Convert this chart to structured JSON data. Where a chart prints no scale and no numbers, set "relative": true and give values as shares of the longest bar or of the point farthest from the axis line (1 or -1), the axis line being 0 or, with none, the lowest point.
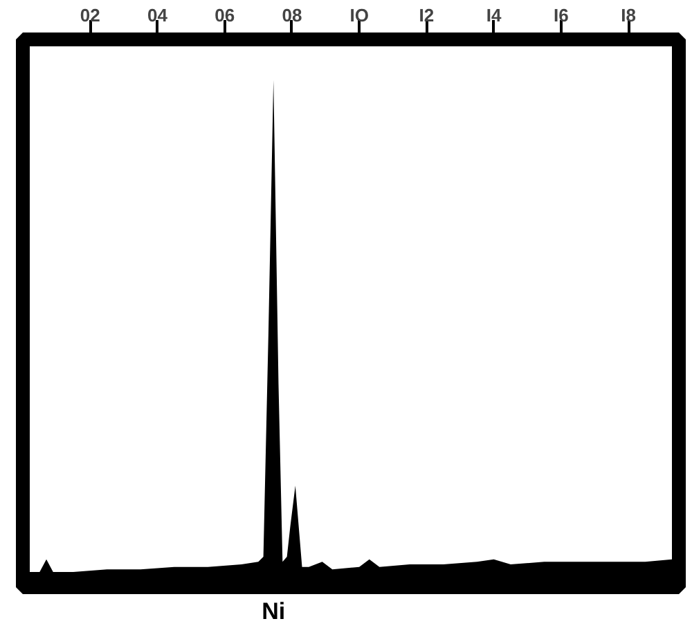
{
  "chart_data": {
    "type": "area",
    "relative": true,
    "x": [
      0.2,
      0.5,
      0.7,
      0.9,
      1.5,
      2.5,
      3.5,
      4.5,
      5.5,
      6.5,
      7.0,
      7.15,
      7.3,
      7.45,
      7.6,
      7.72,
      7.85,
      7.95,
      8.1,
      8.2,
      8.3,
      8.5,
      8.9,
      9.2,
      10.0,
      10.3,
      10.6,
      11.5,
      12.5,
      13.5,
      14.0,
      14.5,
      15.5,
      16.5,
      17.5,
      18.5,
      19.3
    ],
    "series": [
      {
        "color": "#000000",
        "values": [
          0.03,
          0.03,
          0.055,
          0.03,
          0.03,
          0.035,
          0.035,
          0.04,
          0.04,
          0.045,
          0.05,
          0.06,
          0.5,
          1.0,
          0.4,
          0.05,
          0.06,
          0.12,
          0.2,
          0.12,
          0.04,
          0.04,
          0.05,
          0.035,
          0.04,
          0.055,
          0.04,
          0.045,
          0.045,
          0.05,
          0.055,
          0.045,
          0.05,
          0.05,
          0.05,
          0.05,
          0.055
        ]
      }
    ],
    "xlim": [
      0,
      19.5
    ],
    "xticks": [
      {
        "value": 2,
        "label": "02"
      },
      {
        "value": 4,
        "label": "04"
      },
      {
        "value": 6,
        "label": "06"
      },
      {
        "value": 8,
        "label": "08"
      },
      {
        "value": 10,
        "label": "IO"
      },
      {
        "value": 12,
        "label": "I2"
      },
      {
        "value": 14,
        "label": "I4"
      },
      {
        "value": 16,
        "label": "I6"
      },
      {
        "value": 18,
        "label": "I8"
      }
    ],
    "annotations": [
      "Ni"
    ],
    "grid": false
  }
}
